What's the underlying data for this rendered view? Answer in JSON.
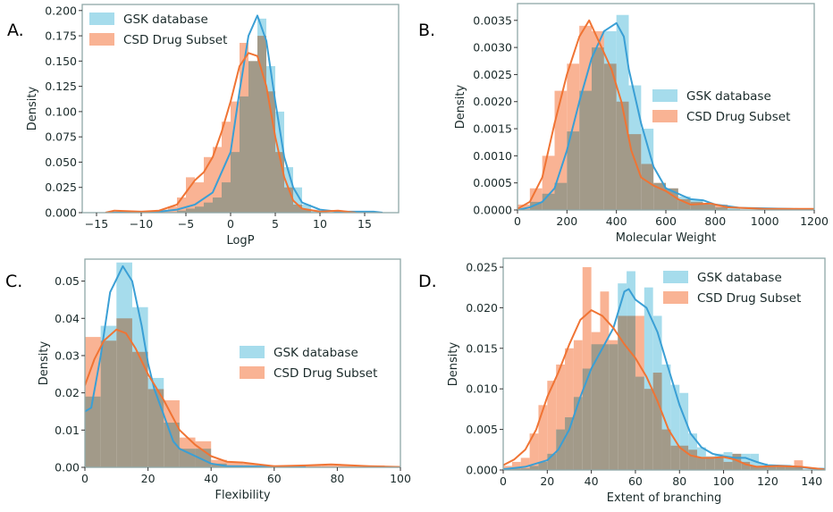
{
  "colors": {
    "gsk_bar": "#a6dcec",
    "csd_bar": "#f9b394",
    "gsk_line": "#3a9fd5",
    "csd_line": "#f07434",
    "frame": "#8fa8a8"
  },
  "chart_data": [
    {
      "panel": "A.",
      "type": "histogram+kde",
      "xlabel": "LogP",
      "ylabel": "Density",
      "xlim": [
        -16.6,
        18.8
      ],
      "ylim": [
        0,
        0.206
      ],
      "legend_placement": "upper-left",
      "xticks": [
        -15,
        -10,
        -5,
        0,
        5,
        10,
        15
      ],
      "xtick_labels": [
        "−15",
        "−10",
        "−5",
        "0",
        "5",
        "10",
        "15"
      ],
      "yticks": [
        0,
        0.025,
        0.05,
        0.075,
        0.1,
        0.125,
        0.15,
        0.175,
        0.2
      ],
      "ytick_labels": [
        "0.000",
        "0.025",
        "0.050",
        "0.075",
        "0.100",
        "0.125",
        "0.150",
        "0.175",
        "0.200"
      ],
      "series": [
        {
          "name": "GSK database",
          "bin_start": -6,
          "bin_width": 1,
          "hist": [
            0.002,
            0.004,
            0.006,
            0.01,
            0.015,
            0.03,
            0.06,
            0.115,
            0.15,
            0.192,
            0.145,
            0.1,
            0.045,
            0.025,
            0.008,
            0.003
          ],
          "kde": [
            [
              -14,
              0
            ],
            [
              -8,
              0.001
            ],
            [
              -6,
              0.003
            ],
            [
              -4,
              0.008
            ],
            [
              -2,
              0.02
            ],
            [
              0,
              0.06
            ],
            [
              1,
              0.12
            ],
            [
              2,
              0.175
            ],
            [
              3,
              0.195
            ],
            [
              4,
              0.17
            ],
            [
              5,
              0.11
            ],
            [
              6,
              0.055
            ],
            [
              7,
              0.025
            ],
            [
              8,
              0.01
            ],
            [
              10,
              0.003
            ],
            [
              12,
              0.001
            ],
            [
              16,
              0.001
            ],
            [
              17,
              0
            ]
          ]
        },
        {
          "name": "CSD Drug Subset",
          "bin_start": -8,
          "bin_width": 1,
          "hist": [
            0.003,
            0.006,
            0.015,
            0.035,
            0.03,
            0.055,
            0.065,
            0.09,
            0.11,
            0.168,
            0.15,
            0.175,
            0.12,
            0.06,
            0.025,
            0.008,
            0.003
          ],
          "kde": [
            [
              -14,
              0
            ],
            [
              -13,
              0.002
            ],
            [
              -10,
              0.001
            ],
            [
              -8,
              0.002
            ],
            [
              -6,
              0.008
            ],
            [
              -5,
              0.02
            ],
            [
              -4,
              0.032
            ],
            [
              -3,
              0.04
            ],
            [
              -2,
              0.055
            ],
            [
              -1,
              0.08
            ],
            [
              0,
              0.11
            ],
            [
              1,
              0.145
            ],
            [
              2,
              0.158
            ],
            [
              3,
              0.155
            ],
            [
              4,
              0.125
            ],
            [
              5,
              0.075
            ],
            [
              6,
              0.035
            ],
            [
              7,
              0.012
            ],
            [
              8,
              0.004
            ],
            [
              10,
              0.001
            ],
            [
              12,
              0.002
            ],
            [
              14,
              0
            ]
          ]
        }
      ]
    },
    {
      "panel": "B.",
      "type": "histogram+kde",
      "xlabel": "Molecular Weight",
      "ylabel": "Density",
      "xlim": [
        0,
        1200
      ],
      "ylim": [
        0,
        0.00381
      ],
      "legend_placement": "center-right",
      "xticks": [
        0,
        200,
        400,
        600,
        800,
        1000,
        1200
      ],
      "xtick_labels": [
        "0",
        "200",
        "400",
        "600",
        "800",
        "1000",
        "1200"
      ],
      "yticks": [
        0,
        0.0005,
        0.001,
        0.0015,
        0.002,
        0.0025,
        0.003,
        0.0035
      ],
      "ytick_labels": [
        "0.0000",
        "0.0005",
        "0.0010",
        "0.0015",
        "0.0020",
        "0.0025",
        "0.0030",
        "0.0035"
      ],
      "series": [
        {
          "name": "GSK database",
          "bin_start": 50,
          "bin_width": 50,
          "hist": [
            0.00015,
            0.0003,
            0.0005,
            0.00145,
            0.0022,
            0.003,
            0.0033,
            0.0036,
            0.0023,
            0.0015,
            0.0005,
            0.0004,
            0.00025,
            0.00018,
            0.0001,
            5e-05,
            5e-05
          ],
          "kde": [
            [
              0,
              0
            ],
            [
              50,
              5e-05
            ],
            [
              100,
              0.00015
            ],
            [
              150,
              0.0004
            ],
            [
              200,
              0.0011
            ],
            [
              250,
              0.002
            ],
            [
              300,
              0.0028
            ],
            [
              350,
              0.0033
            ],
            [
              400,
              0.00345
            ],
            [
              430,
              0.0032
            ],
            [
              450,
              0.0026
            ],
            [
              500,
              0.0016
            ],
            [
              550,
              0.0008
            ],
            [
              600,
              0.0004
            ],
            [
              700,
              0.0002
            ],
            [
              750,
              0.00018
            ],
            [
              800,
              0.0001
            ],
            [
              900,
              4e-05
            ],
            [
              1100,
              2e-05
            ],
            [
              1200,
              1e-05
            ]
          ]
        },
        {
          "name": "CSD Drug Subset",
          "bin_start": 0,
          "bin_width": 50,
          "hist": [
            0.0001,
            0.0004,
            0.001,
            0.0022,
            0.0027,
            0.0034,
            0.0033,
            0.0027,
            0.002,
            0.0014,
            0.00085,
            0.0005,
            0.0004,
            0.0002,
            0.00015,
            0.00012,
            0.0001
          ],
          "kde": [
            [
              0,
              2e-05
            ],
            [
              50,
              0.00015
            ],
            [
              100,
              0.0006
            ],
            [
              150,
              0.0016
            ],
            [
              200,
              0.0025
            ],
            [
              250,
              0.0032
            ],
            [
              290,
              0.0035
            ],
            [
              330,
              0.0031
            ],
            [
              380,
              0.0026
            ],
            [
              420,
              0.002
            ],
            [
              460,
              0.0011
            ],
            [
              500,
              0.0006
            ],
            [
              550,
              0.00045
            ],
            [
              600,
              0.00035
            ],
            [
              650,
              0.0002
            ],
            [
              700,
              0.0001
            ],
            [
              780,
              0.00012
            ],
            [
              850,
              5e-05
            ],
            [
              1000,
              2e-05
            ],
            [
              1200,
              2e-05
            ]
          ]
        }
      ]
    },
    {
      "panel": "C.",
      "type": "histogram+kde",
      "xlabel": "Flexibility",
      "ylabel": "Density",
      "xlim": [
        0,
        100
      ],
      "ylim": [
        0,
        0.0559
      ],
      "legend_placement": "center-right",
      "xticks": [
        0,
        20,
        40,
        60,
        80,
        100
      ],
      "xtick_labels": [
        "0",
        "20",
        "40",
        "60",
        "80",
        "100"
      ],
      "yticks": [
        0,
        0.01,
        0.02,
        0.03,
        0.04,
        0.05
      ],
      "ytick_labels": [
        "0.00",
        "0.01",
        "0.02",
        "0.03",
        "0.04",
        "0.05"
      ],
      "series": [
        {
          "name": "GSK database",
          "bin_start": 0,
          "bin_width": 5,
          "hist": [
            0.019,
            0.038,
            0.055,
            0.043,
            0.024,
            0.012,
            0.005,
            0.005,
            0.001,
            0.0005,
            0.0003,
            0.0003,
            0.0002,
            0.0002
          ],
          "kde": [
            [
              0,
              0.015
            ],
            [
              2,
              0.016
            ],
            [
              5,
              0.03
            ],
            [
              8,
              0.047
            ],
            [
              12,
              0.054
            ],
            [
              15,
              0.05
            ],
            [
              18,
              0.038
            ],
            [
              20,
              0.028
            ],
            [
              22,
              0.021
            ],
            [
              25,
              0.014
            ],
            [
              28,
              0.007
            ],
            [
              30,
              0.005
            ],
            [
              35,
              0.003
            ],
            [
              40,
              0.001
            ],
            [
              45,
              0.0003
            ],
            [
              60,
              0.0002
            ],
            [
              70,
              0.0001
            ]
          ]
        },
        {
          "name": "CSD Drug Subset",
          "bin_start": 0,
          "bin_width": 5,
          "hist": [
            0.035,
            0.034,
            0.04,
            0.031,
            0.021,
            0.018,
            0.008,
            0.007,
            0.002,
            0.0015,
            0.001,
            0.0005,
            0.0005,
            0.0005,
            0.0005,
            0.0005,
            0.0005,
            0.0005,
            0.0005,
            0.0003
          ],
          "kde": [
            [
              0,
              0.022
            ],
            [
              3,
              0.029
            ],
            [
              6,
              0.034
            ],
            [
              10,
              0.037
            ],
            [
              13,
              0.036
            ],
            [
              16,
              0.032
            ],
            [
              20,
              0.025
            ],
            [
              25,
              0.018
            ],
            [
              30,
              0.01
            ],
            [
              35,
              0.006
            ],
            [
              40,
              0.003
            ],
            [
              45,
              0.0015
            ],
            [
              50,
              0.0013
            ],
            [
              55,
              0.0008
            ],
            [
              60,
              0.0003
            ],
            [
              70,
              0.0005
            ],
            [
              78,
              0.0008
            ],
            [
              90,
              0.0003
            ],
            [
              100,
              0.0001
            ]
          ]
        }
      ]
    },
    {
      "panel": "D.",
      "type": "histogram+kde",
      "xlabel": "Extent of branching",
      "ylabel": "Density",
      "xlim": [
        0,
        146
      ],
      "ylim": [
        0,
        0.0261
      ],
      "legend_placement": "upper-right",
      "xticks": [
        0,
        20,
        40,
        60,
        80,
        100,
        120,
        140
      ],
      "xtick_labels": [
        "0",
        "20",
        "40",
        "60",
        "80",
        "100",
        "120",
        "140"
      ],
      "yticks": [
        0,
        0.005,
        0.01,
        0.015,
        0.02,
        0.025
      ],
      "ytick_labels": [
        "0.000",
        "0.005",
        "0.010",
        "0.015",
        "0.020",
        "0.025"
      ],
      "series": [
        {
          "name": "GSK database",
          "bin_start": 0,
          "bin_width": 4,
          "hist": [
            0.0002,
            0.0002,
            0.0002,
            0.0005,
            0.001,
            0.002,
            0.005,
            0.0065,
            0.009,
            0.0125,
            0.0155,
            0.0155,
            0.0155,
            0.023,
            0.0245,
            0.0115,
            0.0225,
            0.019,
            0.013,
            0.0105,
            0.0095,
            0.0045,
            0.0028,
            0.0017,
            0.002,
            0.0022,
            0.002,
            0.002,
            0.002,
            0.0008,
            0.0005,
            0.0005,
            0.0004,
            0.0004
          ],
          "kde": [
            [
              0,
              0.0001
            ],
            [
              10,
              0.0004
            ],
            [
              20,
              0.0012
            ],
            [
              25,
              0.0025
            ],
            [
              30,
              0.005
            ],
            [
              35,
              0.009
            ],
            [
              40,
              0.0125
            ],
            [
              45,
              0.015
            ],
            [
              50,
              0.0175
            ],
            [
              55,
              0.022
            ],
            [
              57,
              0.0223
            ],
            [
              60,
              0.021
            ],
            [
              65,
              0.02
            ],
            [
              70,
              0.017
            ],
            [
              75,
              0.0125
            ],
            [
              80,
              0.008
            ],
            [
              85,
              0.0045
            ],
            [
              90,
              0.0028
            ],
            [
              95,
              0.002
            ],
            [
              100,
              0.0017
            ],
            [
              105,
              0.0015
            ],
            [
              110,
              0.0015
            ],
            [
              115,
              0.001
            ],
            [
              120,
              0.0006
            ],
            [
              130,
              0.0005
            ],
            [
              140,
              0.0002
            ],
            [
              150,
              0.0001
            ]
          ]
        },
        {
          "name": "CSD Drug Subset",
          "bin_start": 0,
          "bin_width": 4,
          "hist": [
            0.0005,
            0.001,
            0.0015,
            0.0045,
            0.008,
            0.011,
            0.013,
            0.015,
            0.016,
            0.025,
            0.017,
            0.022,
            0.016,
            0.019,
            0.019,
            0.019,
            0.01,
            0.012,
            0.005,
            0.003,
            0.003,
            0.0025,
            0.0015,
            0.0015,
            0.0015,
            0.001,
            0.002,
            0.001,
            0.0005,
            0.0005,
            0.0005,
            0.0005,
            0.0005,
            0.0012
          ],
          "kde": [
            [
              0,
              0.0006
            ],
            [
              5,
              0.0013
            ],
            [
              10,
              0.0025
            ],
            [
              15,
              0.005
            ],
            [
              20,
              0.009
            ],
            [
              25,
              0.012
            ],
            [
              30,
              0.0155
            ],
            [
              35,
              0.0185
            ],
            [
              40,
              0.0197
            ],
            [
              45,
              0.019
            ],
            [
              50,
              0.0175
            ],
            [
              55,
              0.0155
            ],
            [
              60,
              0.0138
            ],
            [
              65,
              0.0115
            ],
            [
              70,
              0.0085
            ],
            [
              75,
              0.005
            ],
            [
              80,
              0.0028
            ],
            [
              85,
              0.0018
            ],
            [
              90,
              0.0015
            ],
            [
              95,
              0.0015
            ],
            [
              100,
              0.0016
            ],
            [
              105,
              0.0013
            ],
            [
              110,
              0.0007
            ],
            [
              115,
              0.0004
            ],
            [
              125,
              0.0005
            ],
            [
              135,
              0.0004
            ],
            [
              145,
              0.0001
            ],
            [
              150,
              0
            ]
          ]
        }
      ]
    }
  ]
}
